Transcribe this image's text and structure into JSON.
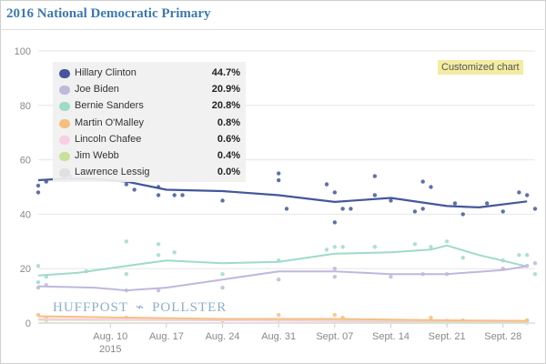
{
  "header": {
    "title": "2016 National Democratic Primary"
  },
  "badge": {
    "label": "Customized chart"
  },
  "watermark": {
    "left": "HUFFPOST",
    "right": "POLLSTER",
    "arrow": "⌁"
  },
  "colors": {
    "clinton": "#43579a",
    "biden": "#bfb8dc",
    "sanders": "#9fdacb",
    "omalley": "#f5c07f",
    "chafee": "#f7cfe3",
    "webb": "#c7e29d",
    "lessig": "#e0e0e0",
    "grid": "#e6e6e6",
    "axis_text": "#888888"
  },
  "chart_data": {
    "type": "line",
    "title": "2016 National Democratic Primary",
    "ylim": [
      0,
      100
    ],
    "yticks": [
      0,
      20,
      40,
      60,
      80,
      100
    ],
    "xlim": [
      "2015-08-01",
      "2015-10-02"
    ],
    "xticks": [
      {
        "date": "2015-08-10",
        "label": "Aug. 10",
        "sublabel": "2015"
      },
      {
        "date": "2015-08-17",
        "label": "Aug. 17",
        "sublabel": ""
      },
      {
        "date": "2015-08-24",
        "label": "Aug. 24",
        "sublabel": ""
      },
      {
        "date": "2015-08-31",
        "label": "Aug. 31",
        "sublabel": ""
      },
      {
        "date": "2015-09-07",
        "label": "Sept. 07",
        "sublabel": ""
      },
      {
        "date": "2015-09-14",
        "label": "Sept. 14",
        "sublabel": ""
      },
      {
        "date": "2015-09-21",
        "label": "Sept. 21",
        "sublabel": ""
      },
      {
        "date": "2015-09-28",
        "label": "Sept. 28",
        "sublabel": ""
      }
    ],
    "legend_position": "top-left",
    "grid": true,
    "series": [
      {
        "name": "Hillary Clinton",
        "color_key": "clinton",
        "latest": "44.7%",
        "trend": [
          [
            "2015-08-01",
            52.5
          ],
          [
            "2015-08-04",
            53
          ],
          [
            "2015-08-08",
            53
          ],
          [
            "2015-08-12",
            52
          ],
          [
            "2015-08-17",
            49
          ],
          [
            "2015-08-24",
            48.5
          ],
          [
            "2015-08-31",
            47
          ],
          [
            "2015-09-07",
            44.5
          ],
          [
            "2015-09-14",
            46
          ],
          [
            "2015-09-21",
            43
          ],
          [
            "2015-09-25",
            42.5
          ],
          [
            "2015-10-01",
            44.7
          ]
        ],
        "points": [
          [
            "2015-08-01",
            48
          ],
          [
            "2015-08-01",
            50.5
          ],
          [
            "2015-08-02",
            52
          ],
          [
            "2015-08-05",
            54
          ],
          [
            "2015-08-12",
            51
          ],
          [
            "2015-08-13",
            49
          ],
          [
            "2015-08-16",
            50
          ],
          [
            "2015-08-16",
            47
          ],
          [
            "2015-08-18",
            47
          ],
          [
            "2015-08-19",
            47
          ],
          [
            "2015-08-24",
            45
          ],
          [
            "2015-08-31",
            55
          ],
          [
            "2015-08-31",
            52.5
          ],
          [
            "2015-09-01",
            42
          ],
          [
            "2015-09-06",
            51
          ],
          [
            "2015-09-07",
            37
          ],
          [
            "2015-09-07",
            48
          ],
          [
            "2015-09-08",
            42
          ],
          [
            "2015-09-09",
            42
          ],
          [
            "2015-09-12",
            54
          ],
          [
            "2015-09-12",
            47
          ],
          [
            "2015-09-14",
            45
          ],
          [
            "2015-09-17",
            41
          ],
          [
            "2015-09-18",
            42
          ],
          [
            "2015-09-18",
            52
          ],
          [
            "2015-09-19",
            50
          ],
          [
            "2015-09-22",
            44
          ],
          [
            "2015-09-23",
            40
          ],
          [
            "2015-09-26",
            44
          ],
          [
            "2015-09-28",
            41
          ],
          [
            "2015-09-30",
            48
          ],
          [
            "2015-10-01",
            47
          ],
          [
            "2015-10-02",
            42
          ]
        ]
      },
      {
        "name": "Joe Biden",
        "color_key": "biden",
        "latest": "20.9%",
        "trend": [
          [
            "2015-08-01",
            13.5
          ],
          [
            "2015-08-08",
            13
          ],
          [
            "2015-08-12",
            12
          ],
          [
            "2015-08-17",
            13
          ],
          [
            "2015-08-24",
            16
          ],
          [
            "2015-08-31",
            19
          ],
          [
            "2015-09-07",
            19
          ],
          [
            "2015-09-14",
            18
          ],
          [
            "2015-09-21",
            18
          ],
          [
            "2015-09-28",
            19.5
          ],
          [
            "2015-10-01",
            20.9
          ]
        ],
        "points": [
          [
            "2015-08-01",
            13
          ],
          [
            "2015-08-02",
            14
          ],
          [
            "2015-08-12",
            12
          ],
          [
            "2015-08-16",
            12
          ],
          [
            "2015-08-24",
            13
          ],
          [
            "2015-08-31",
            16
          ],
          [
            "2015-09-07",
            17
          ],
          [
            "2015-09-07",
            20
          ],
          [
            "2015-09-14",
            17
          ],
          [
            "2015-09-18",
            18
          ],
          [
            "2015-09-21",
            18
          ],
          [
            "2015-09-28",
            20
          ],
          [
            "2015-10-01",
            21
          ],
          [
            "2015-10-02",
            22
          ]
        ]
      },
      {
        "name": "Bernie Sanders",
        "color_key": "sanders",
        "latest": "20.8%",
        "trend": [
          [
            "2015-08-01",
            17.5
          ],
          [
            "2015-08-06",
            18.5
          ],
          [
            "2015-08-12",
            21
          ],
          [
            "2015-08-17",
            23
          ],
          [
            "2015-08-24",
            22
          ],
          [
            "2015-08-31",
            22.5
          ],
          [
            "2015-09-07",
            25.5
          ],
          [
            "2015-09-14",
            26
          ],
          [
            "2015-09-19",
            27
          ],
          [
            "2015-09-21",
            28.5
          ],
          [
            "2015-09-25",
            25
          ],
          [
            "2015-10-01",
            20.8
          ]
        ],
        "points": [
          [
            "2015-08-01",
            21
          ],
          [
            "2015-08-01",
            15
          ],
          [
            "2015-08-02",
            17
          ],
          [
            "2015-08-07",
            19
          ],
          [
            "2015-08-12",
            30
          ],
          [
            "2015-08-12",
            18
          ],
          [
            "2015-08-16",
            29
          ],
          [
            "2015-08-16",
            25
          ],
          [
            "2015-08-18",
            26
          ],
          [
            "2015-08-24",
            18
          ],
          [
            "2015-08-31",
            23
          ],
          [
            "2015-09-06",
            27
          ],
          [
            "2015-09-07",
            28
          ],
          [
            "2015-09-08",
            28
          ],
          [
            "2015-09-12",
            28
          ],
          [
            "2015-09-17",
            29
          ],
          [
            "2015-09-19",
            28
          ],
          [
            "2015-09-21",
            30
          ],
          [
            "2015-09-23",
            24
          ],
          [
            "2015-09-28",
            23
          ],
          [
            "2015-09-30",
            25
          ],
          [
            "2015-10-01",
            25
          ],
          [
            "2015-10-02",
            18
          ]
        ]
      },
      {
        "name": "Martin O'Malley",
        "color_key": "omalley",
        "latest": "0.8%",
        "trend": [
          [
            "2015-08-01",
            2.5
          ],
          [
            "2015-08-12",
            2
          ],
          [
            "2015-08-24",
            1.5
          ],
          [
            "2015-09-07",
            1.5
          ],
          [
            "2015-09-21",
            1
          ],
          [
            "2015-10-01",
            0.8
          ]
        ],
        "points": [
          [
            "2015-08-01",
            3
          ],
          [
            "2015-08-02",
            2
          ],
          [
            "2015-08-12",
            2
          ],
          [
            "2015-08-24",
            1
          ],
          [
            "2015-08-31",
            3
          ],
          [
            "2015-09-07",
            3
          ],
          [
            "2015-09-08",
            2
          ],
          [
            "2015-09-12",
            1
          ],
          [
            "2015-09-19",
            2
          ],
          [
            "2015-09-23",
            1
          ],
          [
            "2015-10-01",
            1
          ]
        ]
      },
      {
        "name": "Lincoln Chafee",
        "color_key": "chafee",
        "latest": "0.6%",
        "trend": [
          [
            "2015-08-01",
            1.5
          ],
          [
            "2015-08-24",
            1
          ],
          [
            "2015-09-14",
            0.8
          ],
          [
            "2015-10-01",
            0.6
          ]
        ],
        "points": [
          [
            "2015-08-02",
            1
          ],
          [
            "2015-08-31",
            1
          ],
          [
            "2015-09-07",
            1
          ],
          [
            "2015-09-21",
            1
          ],
          [
            "2015-10-01",
            0
          ]
        ]
      },
      {
        "name": "Jim Webb",
        "color_key": "webb",
        "latest": "0.4%",
        "trend": [
          [
            "2015-08-01",
            1.2
          ],
          [
            "2015-08-24",
            1
          ],
          [
            "2015-09-14",
            0.6
          ],
          [
            "2015-10-01",
            0.4
          ]
        ],
        "points": [
          [
            "2015-08-02",
            1
          ],
          [
            "2015-08-31",
            1
          ],
          [
            "2015-09-08",
            1
          ],
          [
            "2015-09-21",
            0
          ],
          [
            "2015-10-01",
            1
          ]
        ]
      },
      {
        "name": "Lawrence Lessig",
        "color_key": "lessig",
        "latest": "0.0%",
        "trend": [
          [
            "2015-08-01",
            0
          ],
          [
            "2015-10-01",
            0
          ]
        ],
        "points": []
      }
    ]
  }
}
